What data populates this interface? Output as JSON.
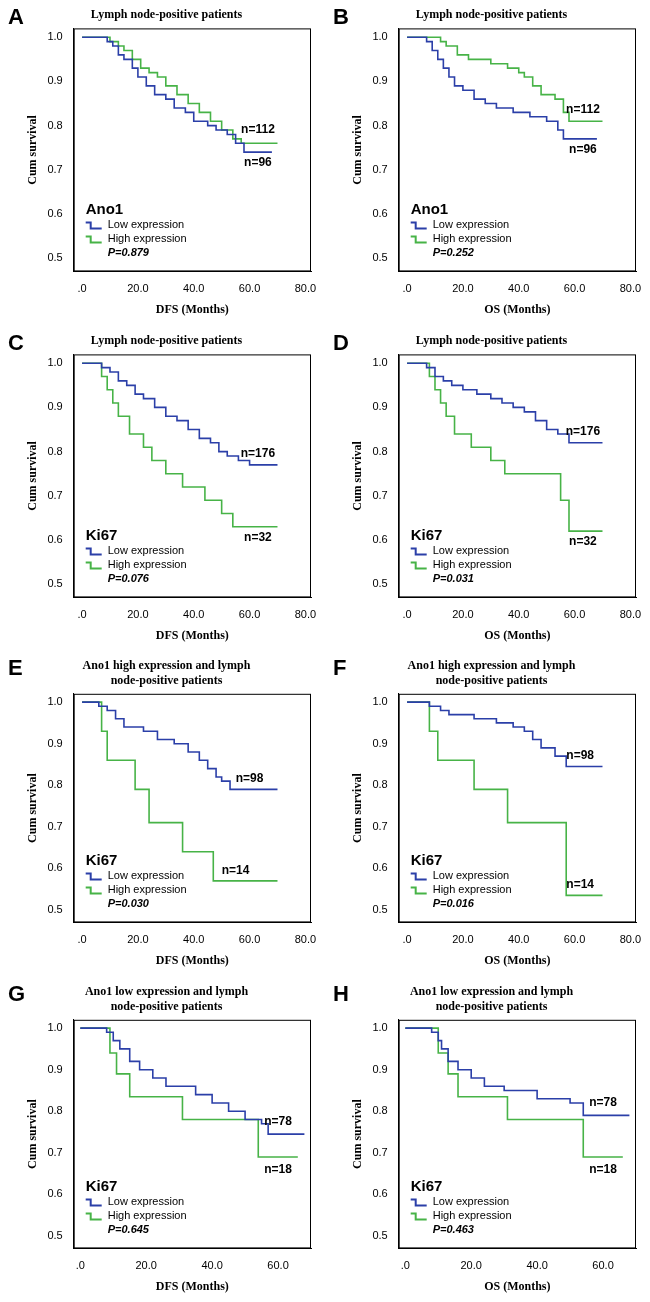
{
  "chart_data": [
    {
      "panel": "A",
      "type": "line",
      "title": "Lymph node-positive patients",
      "x_label": "DFS (Months)",
      "y_label": "Cum survival",
      "gene": "Ano1",
      "p_value": "P=0.879",
      "xlim": [
        -3,
        82
      ],
      "ylim": [
        0.47,
        1.02
      ],
      "xticks": [
        {
          "value": 0,
          "label": ".0"
        },
        {
          "value": 20,
          "label": "20.0"
        },
        {
          "value": 40,
          "label": "40.0"
        },
        {
          "value": 60,
          "label": "60.0"
        },
        {
          "value": 80,
          "label": "80.0"
        }
      ],
      "yticks": [
        0.5,
        0.6,
        0.7,
        0.8,
        0.9,
        {
          "value": 1,
          "label": "1.0"
        }
      ],
      "grid": false,
      "legend": "bottom-left",
      "line_style": "step",
      "series": [
        {
          "name": "Low expression",
          "color": "#2b3fa8",
          "x": [
            0,
            9,
            11,
            13,
            15,
            18,
            20,
            23,
            26,
            30,
            33,
            37,
            40,
            45,
            48,
            52,
            55,
            58,
            68
          ],
          "values": [
            1,
            0.99,
            0.98,
            0.96,
            0.95,
            0.93,
            0.91,
            0.89,
            0.87,
            0.86,
            0.84,
            0.83,
            0.81,
            0.8,
            0.79,
            0.78,
            0.76,
            0.74,
            0.74
          ]
        },
        {
          "name": "High expression",
          "color": "#47b347",
          "x": [
            0,
            10,
            13,
            15,
            18,
            21,
            24,
            27,
            30,
            34,
            38,
            42,
            46,
            50,
            54,
            57,
            70
          ],
          "values": [
            1,
            0.99,
            0.98,
            0.97,
            0.95,
            0.93,
            0.92,
            0.91,
            0.89,
            0.87,
            0.85,
            0.83,
            0.81,
            0.79,
            0.77,
            0.76,
            0.76
          ]
        }
      ],
      "annotations": [
        {
          "text": "n=112",
          "x": 63,
          "y": 0.79
        },
        {
          "text": "n=96",
          "x": 63,
          "y": 0.715
        }
      ]
    },
    {
      "panel": "B",
      "type": "line",
      "title": "Lymph node-positive patients",
      "x_label": "OS (Months)",
      "y_label": "Cum survival",
      "gene": "Ano1",
      "p_value": "P=0.252",
      "xlim": [
        -3,
        82
      ],
      "ylim": [
        0.47,
        1.02
      ],
      "xticks": [
        {
          "value": 0,
          "label": ".0"
        },
        {
          "value": 20,
          "label": "20.0"
        },
        {
          "value": 40,
          "label": "40.0"
        },
        {
          "value": 60,
          "label": "60.0"
        },
        {
          "value": 80,
          "label": "80.0"
        }
      ],
      "yticks": [
        0.5,
        0.6,
        0.7,
        0.8,
        0.9,
        {
          "value": 1,
          "label": "1.0"
        }
      ],
      "grid": false,
      "legend": "bottom-left",
      "line_style": "step",
      "series": [
        {
          "name": "Low expression",
          "color": "#2b3fa8",
          "x": [
            0,
            7,
            9,
            11,
            13,
            15,
            17,
            20,
            24,
            28,
            32,
            38,
            44,
            50,
            54,
            56,
            68
          ],
          "values": [
            1,
            0.99,
            0.97,
            0.95,
            0.93,
            0.91,
            0.89,
            0.88,
            0.86,
            0.85,
            0.84,
            0.83,
            0.82,
            0.81,
            0.79,
            0.77,
            0.77
          ]
        },
        {
          "name": "High expression",
          "color": "#47b347",
          "x": [
            0,
            12,
            14,
            18,
            22,
            30,
            36,
            40,
            42,
            45,
            48,
            53,
            56,
            58,
            70
          ],
          "values": [
            1,
            0.99,
            0.98,
            0.96,
            0.95,
            0.94,
            0.93,
            0.92,
            0.91,
            0.89,
            0.87,
            0.86,
            0.83,
            0.81,
            0.81
          ]
        }
      ],
      "annotations": [
        {
          "text": "n=112",
          "x": 63,
          "y": 0.835
        },
        {
          "text": "n=96",
          "x": 63,
          "y": 0.745
        }
      ]
    },
    {
      "panel": "C",
      "type": "line",
      "title": "Lymph node-positive patients",
      "x_label": "DFS (Months)",
      "y_label": "Cum survival",
      "gene": "Ki67",
      "p_value": "P=0.076",
      "xlim": [
        -3,
        82
      ],
      "ylim": [
        0.47,
        1.02
      ],
      "xticks": [
        {
          "value": 0,
          "label": ".0"
        },
        {
          "value": 20,
          "label": "20.0"
        },
        {
          "value": 40,
          "label": "40.0"
        },
        {
          "value": 60,
          "label": "60.0"
        },
        {
          "value": 80,
          "label": "80.0"
        }
      ],
      "yticks": [
        0.5,
        0.6,
        0.7,
        0.8,
        0.9,
        {
          "value": 1,
          "label": "1.0"
        }
      ],
      "grid": false,
      "legend": "bottom-left",
      "line_style": "step",
      "series": [
        {
          "name": "Low expression",
          "color": "#2b3fa8",
          "x": [
            0,
            7,
            10,
            13,
            16,
            19,
            22,
            26,
            30,
            34,
            38,
            42,
            46,
            49,
            52,
            56,
            60,
            70
          ],
          "values": [
            1,
            0.99,
            0.98,
            0.96,
            0.95,
            0.93,
            0.92,
            0.9,
            0.88,
            0.87,
            0.85,
            0.83,
            0.82,
            0.8,
            0.79,
            0.78,
            0.77,
            0.77
          ]
        },
        {
          "name": "High expression",
          "color": "#47b347",
          "x": [
            0,
            7,
            9,
            11,
            13,
            17,
            22,
            25,
            30,
            36,
            44,
            50,
            54,
            70
          ],
          "values": [
            1,
            0.97,
            0.94,
            0.91,
            0.88,
            0.84,
            0.81,
            0.78,
            0.75,
            0.72,
            0.69,
            0.66,
            0.63,
            0.63
          ]
        }
      ],
      "annotations": [
        {
          "text": "n=176",
          "x": 63,
          "y": 0.795
        },
        {
          "text": "n=32",
          "x": 63,
          "y": 0.605
        }
      ]
    },
    {
      "panel": "D",
      "type": "line",
      "title": "Lymph node-positive patients",
      "x_label": "OS (Months)",
      "y_label": "Cum survival",
      "gene": "Ki67",
      "p_value": "P=0.031",
      "xlim": [
        -3,
        82
      ],
      "ylim": [
        0.47,
        1.02
      ],
      "xticks": [
        {
          "value": 0,
          "label": ".0"
        },
        {
          "value": 20,
          "label": "20.0"
        },
        {
          "value": 40,
          "label": "40.0"
        },
        {
          "value": 60,
          "label": "60.0"
        },
        {
          "value": 80,
          "label": "80.0"
        }
      ],
      "yticks": [
        0.5,
        0.6,
        0.7,
        0.8,
        0.9,
        {
          "value": 1,
          "label": "1.0"
        }
      ],
      "grid": false,
      "legend": "bottom-left",
      "line_style": "step",
      "series": [
        {
          "name": "Low expression",
          "color": "#2b3fa8",
          "x": [
            0,
            7,
            10,
            13,
            16,
            20,
            25,
            30,
            34,
            38,
            42,
            46,
            50,
            54,
            58,
            70
          ],
          "values": [
            1,
            0.99,
            0.97,
            0.96,
            0.95,
            0.94,
            0.93,
            0.92,
            0.91,
            0.9,
            0.89,
            0.87,
            0.85,
            0.84,
            0.82,
            0.82
          ]
        },
        {
          "name": "High expression",
          "color": "#47b347",
          "x": [
            0,
            8,
            10,
            12,
            14,
            17,
            23,
            30,
            35,
            55,
            58,
            70
          ],
          "values": [
            1,
            0.97,
            0.94,
            0.91,
            0.88,
            0.84,
            0.81,
            0.78,
            0.75,
            0.69,
            0.62,
            0.62
          ]
        }
      ],
      "annotations": [
        {
          "text": "n=176",
          "x": 63,
          "y": 0.845
        },
        {
          "text": "n=32",
          "x": 63,
          "y": 0.595
        }
      ]
    },
    {
      "panel": "E",
      "type": "line",
      "title": [
        "Ano1 high expression and lymph",
        "node-positive patients"
      ],
      "x_label": "DFS (Months)",
      "y_label": "Cum survival",
      "gene": "Ki67",
      "p_value": "P=0.030",
      "xlim": [
        -3,
        82
      ],
      "ylim": [
        0.47,
        1.02
      ],
      "xticks": [
        {
          "value": 0,
          "label": ".0"
        },
        {
          "value": 20,
          "label": "20.0"
        },
        {
          "value": 40,
          "label": "40.0"
        },
        {
          "value": 60,
          "label": "60.0"
        },
        {
          "value": 80,
          "label": "80.0"
        }
      ],
      "yticks": [
        0.5,
        0.6,
        0.7,
        0.8,
        0.9,
        {
          "value": 1,
          "label": "1.0"
        }
      ],
      "grid": false,
      "legend": "bottom-left",
      "line_style": "step",
      "series": [
        {
          "name": "Low expression",
          "color": "#2b3fa8",
          "x": [
            0,
            6,
            9,
            12,
            15,
            22,
            27,
            33,
            38,
            42,
            45,
            48,
            50,
            53,
            70
          ],
          "values": [
            1,
            0.99,
            0.98,
            0.96,
            0.94,
            0.93,
            0.91,
            0.9,
            0.88,
            0.86,
            0.84,
            0.82,
            0.81,
            0.79,
            0.79
          ]
        },
        {
          "name": "High expression",
          "color": "#47b347",
          "x": [
            0,
            7,
            9,
            19,
            24,
            36,
            47,
            70
          ],
          "values": [
            1,
            0.93,
            0.86,
            0.79,
            0.71,
            0.64,
            0.57,
            0.57
          ]
        }
      ],
      "annotations": [
        {
          "text": "n=98",
          "x": 60,
          "y": 0.815
        },
        {
          "text": "n=14",
          "x": 55,
          "y": 0.595
        }
      ]
    },
    {
      "panel": "F",
      "type": "line",
      "title": [
        "Ano1 high expression and lymph",
        "node-positive patients"
      ],
      "x_label": "OS (Months)",
      "y_label": "Cum survival",
      "gene": "Ki67",
      "p_value": "P=0.016",
      "xlim": [
        -3,
        82
      ],
      "ylim": [
        0.47,
        1.02
      ],
      "xticks": [
        {
          "value": 0,
          "label": ".0"
        },
        {
          "value": 20,
          "label": "20.0"
        },
        {
          "value": 40,
          "label": "40.0"
        },
        {
          "value": 60,
          "label": "60.0"
        },
        {
          "value": 80,
          "label": "80.0"
        }
      ],
      "yticks": [
        0.5,
        0.6,
        0.7,
        0.8,
        0.9,
        {
          "value": 1,
          "label": "1.0"
        }
      ],
      "grid": false,
      "legend": "bottom-left",
      "line_style": "step",
      "series": [
        {
          "name": "Low expression",
          "color": "#2b3fa8",
          "x": [
            0,
            8,
            12,
            15,
            24,
            32,
            38,
            42,
            45,
            48,
            53,
            57,
            70
          ],
          "values": [
            1,
            0.99,
            0.98,
            0.97,
            0.96,
            0.95,
            0.94,
            0.93,
            0.91,
            0.89,
            0.87,
            0.845,
            0.845
          ]
        },
        {
          "name": "High expression",
          "color": "#47b347",
          "x": [
            0,
            8,
            11,
            24,
            36,
            57,
            70
          ],
          "values": [
            1,
            0.93,
            0.86,
            0.79,
            0.71,
            0.535,
            0.535
          ]
        }
      ],
      "annotations": [
        {
          "text": "n=98",
          "x": 62,
          "y": 0.87
        },
        {
          "text": "n=14",
          "x": 62,
          "y": 0.56
        }
      ]
    },
    {
      "panel": "G",
      "type": "line",
      "title": [
        "Ano1 low expression and lymph",
        "node-positive patients"
      ],
      "x_label": "DFS (Months)",
      "y_label": "Cum survival",
      "gene": "Ki67",
      "p_value": "P=0.645",
      "xlim": [
        -2,
        70
      ],
      "ylim": [
        0.47,
        1.02
      ],
      "xticks": [
        {
          "value": 0,
          "label": ".0"
        },
        {
          "value": 20,
          "label": "20.0"
        },
        {
          "value": 40,
          "label": "40.0"
        },
        {
          "value": 60,
          "label": "60.0"
        }
      ],
      "yticks": [
        0.5,
        0.6,
        0.7,
        0.8,
        0.9,
        {
          "value": 1,
          "label": "1.0"
        }
      ],
      "grid": false,
      "legend": "bottom-left",
      "line_style": "step",
      "series": [
        {
          "name": "Low expression",
          "color": "#2b3fa8",
          "x": [
            0,
            8,
            10,
            12,
            15,
            18,
            22,
            26,
            35,
            40,
            45,
            50,
            55,
            57,
            68
          ],
          "values": [
            1,
            0.99,
            0.97,
            0.95,
            0.92,
            0.9,
            0.88,
            0.86,
            0.84,
            0.82,
            0.8,
            0.78,
            0.77,
            0.745,
            0.745
          ]
        },
        {
          "name": "High expression",
          "color": "#47b347",
          "x": [
            0,
            9,
            11,
            15,
            31,
            54,
            66
          ],
          "values": [
            1,
            0.94,
            0.89,
            0.835,
            0.78,
            0.69,
            0.69
          ]
        }
      ],
      "annotations": [
        {
          "text": "n=78",
          "x": 60,
          "y": 0.775
        },
        {
          "text": "n=18",
          "x": 60,
          "y": 0.66
        }
      ]
    },
    {
      "panel": "H",
      "type": "line",
      "title": [
        "Ano1 low expression and lymph",
        "node-positive patients"
      ],
      "x_label": "OS (Months)",
      "y_label": "Cum survival",
      "gene": "Ki67",
      "p_value": "P=0.463",
      "xlim": [
        -2,
        70
      ],
      "ylim": [
        0.47,
        1.02
      ],
      "xticks": [
        {
          "value": 0,
          "label": ".0"
        },
        {
          "value": 20,
          "label": "20.0"
        },
        {
          "value": 40,
          "label": "40.0"
        },
        {
          "value": 60,
          "label": "60.0"
        }
      ],
      "yticks": [
        0.5,
        0.6,
        0.7,
        0.8,
        0.9,
        {
          "value": 1,
          "label": "1.0"
        }
      ],
      "grid": false,
      "legend": "bottom-left",
      "line_style": "step",
      "series": [
        {
          "name": "Low expression",
          "color": "#2b3fa8",
          "x": [
            0,
            8,
            10,
            11,
            13,
            16,
            20,
            24,
            30,
            40,
            50,
            54,
            68
          ],
          "values": [
            1,
            0.99,
            0.97,
            0.95,
            0.92,
            0.9,
            0.88,
            0.86,
            0.85,
            0.83,
            0.82,
            0.79,
            0.79
          ]
        },
        {
          "name": "High expression",
          "color": "#47b347",
          "x": [
            0,
            10,
            13,
            16,
            31,
            54,
            66
          ],
          "values": [
            1,
            0.94,
            0.89,
            0.835,
            0.78,
            0.69,
            0.69
          ]
        }
      ],
      "annotations": [
        {
          "text": "n=78",
          "x": 60,
          "y": 0.82
        },
        {
          "text": "n=18",
          "x": 60,
          "y": 0.66
        }
      ]
    }
  ]
}
